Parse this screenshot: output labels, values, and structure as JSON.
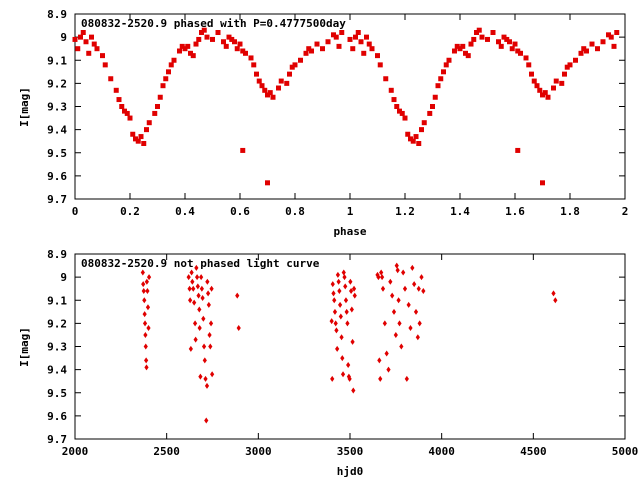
{
  "chart_data": [
    {
      "type": "scatter",
      "title": "080832-2520.9 phased with P=0.4777500day",
      "xlabel": "phase",
      "ylabel": "I[mag]",
      "xlim": [
        0,
        2
      ],
      "ylim": [
        8.9,
        9.7
      ],
      "y_inverted": true,
      "xticks": [
        0,
        0.2,
        0.4,
        0.6,
        0.8,
        1,
        1.2,
        1.4,
        1.6,
        1.8,
        2
      ],
      "xtick_labels": [
        "0",
        "0.2",
        "0.4",
        "0.6",
        "0.8",
        "1",
        "1.2",
        "1.4",
        "1.6",
        "1.8",
        "2"
      ],
      "yticks": [
        8.9,
        9,
        9.1,
        9.2,
        9.3,
        9.4,
        9.5,
        9.6,
        9.7
      ],
      "ytick_labels": [
        "8.9",
        "9",
        "9.1",
        "9.2",
        "9.3",
        "9.4",
        "9.5",
        "9.6",
        "9.7"
      ],
      "grid": false,
      "marker_color": "#e00000",
      "points": [
        [
          0.0,
          9.01
        ],
        [
          0.01,
          9.05
        ],
        [
          0.02,
          9.0
        ],
        [
          0.03,
          8.98
        ],
        [
          0.04,
          9.02
        ],
        [
          0.05,
          9.07
        ],
        [
          0.06,
          9.0
        ],
        [
          0.07,
          9.03
        ],
        [
          0.08,
          9.05
        ],
        [
          0.1,
          9.08
        ],
        [
          0.11,
          9.12
        ],
        [
          0.13,
          9.18
        ],
        [
          0.15,
          9.23
        ],
        [
          0.16,
          9.27
        ],
        [
          0.17,
          9.3
        ],
        [
          0.18,
          9.32
        ],
        [
          0.19,
          9.33
        ],
        [
          0.2,
          9.35
        ],
        [
          0.21,
          9.42
        ],
        [
          0.22,
          9.44
        ],
        [
          0.23,
          9.45
        ],
        [
          0.24,
          9.43
        ],
        [
          0.25,
          9.46
        ],
        [
          0.26,
          9.4
        ],
        [
          0.27,
          9.37
        ],
        [
          0.29,
          9.33
        ],
        [
          0.3,
          9.3
        ],
        [
          0.31,
          9.26
        ],
        [
          0.32,
          9.21
        ],
        [
          0.33,
          9.18
        ],
        [
          0.34,
          9.15
        ],
        [
          0.35,
          9.12
        ],
        [
          0.36,
          9.1
        ],
        [
          0.38,
          9.06
        ],
        [
          0.39,
          9.04
        ],
        [
          0.4,
          9.05
        ],
        [
          0.41,
          9.04
        ],
        [
          0.42,
          9.07
        ],
        [
          0.43,
          9.08
        ],
        [
          0.44,
          9.03
        ],
        [
          0.45,
          9.01
        ],
        [
          0.46,
          8.98
        ],
        [
          0.47,
          8.97
        ],
        [
          0.48,
          9.0
        ],
        [
          0.5,
          9.01
        ],
        [
          0.52,
          8.98
        ],
        [
          0.54,
          9.02
        ],
        [
          0.55,
          9.04
        ],
        [
          0.56,
          9.0
        ],
        [
          0.57,
          9.01
        ],
        [
          0.58,
          9.02
        ],
        [
          0.59,
          9.05
        ],
        [
          0.6,
          9.03
        ],
        [
          0.61,
          9.06
        ],
        [
          0.62,
          9.07
        ],
        [
          0.64,
          9.09
        ],
        [
          0.65,
          9.12
        ],
        [
          0.66,
          9.16
        ],
        [
          0.67,
          9.19
        ],
        [
          0.68,
          9.21
        ],
        [
          0.69,
          9.23
        ],
        [
          0.7,
          9.25
        ],
        [
          0.71,
          9.24
        ],
        [
          0.72,
          9.26
        ],
        [
          0.74,
          9.22
        ],
        [
          0.75,
          9.19
        ],
        [
          0.77,
          9.2
        ],
        [
          0.78,
          9.16
        ],
        [
          0.79,
          9.13
        ],
        [
          0.8,
          9.12
        ],
        [
          0.82,
          9.1
        ],
        [
          0.84,
          9.07
        ],
        [
          0.85,
          9.05
        ],
        [
          0.86,
          9.06
        ],
        [
          0.88,
          9.03
        ],
        [
          0.9,
          9.05
        ],
        [
          0.92,
          9.02
        ],
        [
          0.94,
          8.99
        ],
        [
          0.95,
          9.0
        ],
        [
          0.96,
          9.04
        ],
        [
          0.97,
          8.98
        ],
        [
          0.61,
          9.49
        ],
        [
          0.7,
          9.63
        ]
      ]
    },
    {
      "type": "scatter",
      "title": "080832-2520.9 not phased light curve",
      "xlabel": "hjd0",
      "ylabel": "I[mag]",
      "xlim": [
        2000,
        5000
      ],
      "ylim": [
        8.9,
        9.7
      ],
      "y_inverted": true,
      "xticks": [
        2000,
        2500,
        3000,
        3500,
        4000,
        4500,
        5000
      ],
      "xtick_labels": [
        "2000",
        "2500",
        "3000",
        "3500",
        "4000",
        "4500",
        "5000"
      ],
      "yticks": [
        8.9,
        9,
        9.1,
        9.2,
        9.3,
        9.4,
        9.5,
        9.6,
        9.7
      ],
      "ytick_labels": [
        "8.9",
        "9",
        "9.1",
        "9.2",
        "9.3",
        "9.4",
        "9.5",
        "9.6",
        "9.7"
      ],
      "grid": false,
      "marker_color": "#e00000",
      "points": [
        [
          2370,
          8.98
        ],
        [
          2372,
          9.03
        ],
        [
          2375,
          9.06
        ],
        [
          2378,
          9.1
        ],
        [
          2380,
          9.16
        ],
        [
          2382,
          9.2
        ],
        [
          2384,
          9.25
        ],
        [
          2386,
          9.3
        ],
        [
          2388,
          9.36
        ],
        [
          2390,
          9.39
        ],
        [
          2392,
          9.02
        ],
        [
          2395,
          9.06
        ],
        [
          2398,
          9.13
        ],
        [
          2401,
          9.22
        ],
        [
          2404,
          9.0
        ],
        [
          2620,
          9.0
        ],
        [
          2625,
          9.05
        ],
        [
          2628,
          9.1
        ],
        [
          2632,
          9.31
        ],
        [
          2636,
          8.98
        ],
        [
          2640,
          9.02
        ],
        [
          2645,
          9.05
        ],
        [
          2650,
          9.11
        ],
        [
          2655,
          9.2
        ],
        [
          2658,
          9.27
        ],
        [
          2662,
          8.96
        ],
        [
          2666,
          9.0
        ],
        [
          2670,
          9.04
        ],
        [
          2674,
          9.08
        ],
        [
          2678,
          9.14
        ],
        [
          2680,
          9.22
        ],
        [
          2684,
          9.43
        ],
        [
          2688,
          9.0
        ],
        [
          2692,
          9.05
        ],
        [
          2696,
          9.09
        ],
        [
          2700,
          9.18
        ],
        [
          2704,
          9.3
        ],
        [
          2708,
          9.36
        ],
        [
          2712,
          9.44
        ],
        [
          2716,
          9.62
        ],
        [
          2720,
          9.47
        ],
        [
          2722,
          9.02
        ],
        [
          2726,
          9.07
        ],
        [
          2730,
          9.12
        ],
        [
          2734,
          9.25
        ],
        [
          2738,
          9.3
        ],
        [
          2742,
          9.2
        ],
        [
          2745,
          9.05
        ],
        [
          2748,
          9.42
        ],
        [
          2885,
          9.08
        ],
        [
          2893,
          9.22
        ],
        [
          3400,
          9.19
        ],
        [
          3403,
          9.44
        ],
        [
          3406,
          9.03
        ],
        [
          3410,
          9.07
        ],
        [
          3414,
          9.1
        ],
        [
          3418,
          9.15
        ],
        [
          3422,
          9.2
        ],
        [
          3426,
          9.23
        ],
        [
          3430,
          9.31
        ],
        [
          3434,
          8.99
        ],
        [
          3438,
          9.02
        ],
        [
          3442,
          9.06
        ],
        [
          3446,
          9.12
        ],
        [
          3450,
          9.17
        ],
        [
          3454,
          9.26
        ],
        [
          3458,
          9.35
        ],
        [
          3462,
          9.42
        ],
        [
          3466,
          8.98
        ],
        [
          3470,
          9.0
        ],
        [
          3474,
          9.04
        ],
        [
          3478,
          9.1
        ],
        [
          3482,
          9.15
        ],
        [
          3486,
          9.2
        ],
        [
          3490,
          9.38
        ],
        [
          3494,
          9.43
        ],
        [
          3498,
          9.44
        ],
        [
          3502,
          9.02
        ],
        [
          3506,
          9.06
        ],
        [
          3510,
          9.14
        ],
        [
          3514,
          9.28
        ],
        [
          3518,
          9.49
        ],
        [
          3522,
          9.05
        ],
        [
          3526,
          9.08
        ],
        [
          3650,
          8.99
        ],
        [
          3655,
          9.0
        ],
        [
          3660,
          9.36
        ],
        [
          3665,
          9.44
        ],
        [
          3670,
          8.98
        ],
        [
          3675,
          9.0
        ],
        [
          3680,
          9.05
        ],
        [
          3690,
          9.2
        ],
        [
          3700,
          9.33
        ],
        [
          3710,
          9.4
        ],
        [
          3720,
          9.02
        ],
        [
          3730,
          9.08
        ],
        [
          3740,
          9.15
        ],
        [
          3750,
          9.25
        ],
        [
          3755,
          8.95
        ],
        [
          3760,
          8.97
        ],
        [
          3765,
          9.1
        ],
        [
          3770,
          9.2
        ],
        [
          3780,
          9.3
        ],
        [
          3790,
          8.98
        ],
        [
          3800,
          9.05
        ],
        [
          3810,
          9.44
        ],
        [
          3820,
          9.12
        ],
        [
          3830,
          9.22
        ],
        [
          3840,
          8.96
        ],
        [
          3850,
          9.03
        ],
        [
          3860,
          9.15
        ],
        [
          3870,
          9.26
        ],
        [
          3875,
          9.05
        ],
        [
          3880,
          9.2
        ],
        [
          3890,
          9.0
        ],
        [
          3900,
          9.06
        ],
        [
          4610,
          9.07
        ],
        [
          4620,
          9.1
        ]
      ]
    }
  ]
}
